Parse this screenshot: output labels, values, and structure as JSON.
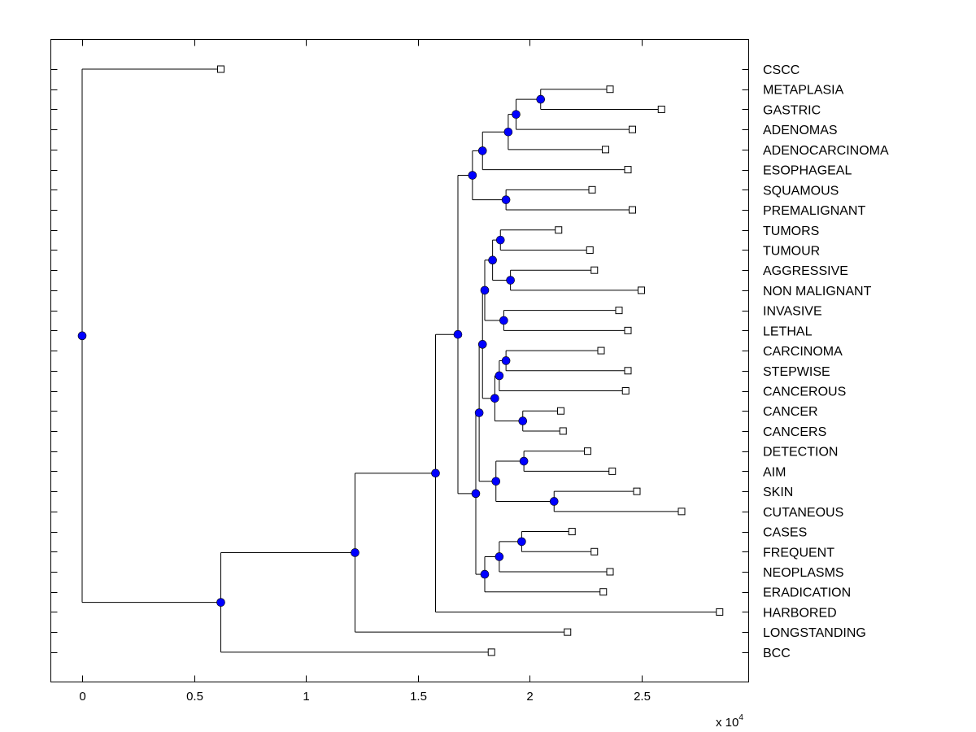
{
  "chart_data": {
    "type": "dendrogram",
    "x_axis": {
      "min": -0.14,
      "max": 2.98,
      "ticks": [
        0,
        0.5,
        1,
        1.5,
        2,
        2.5
      ],
      "tick_labels": [
        "0",
        "0.5",
        "1",
        "1.5",
        "2",
        "2.5"
      ],
      "multiplier_base": "x 10",
      "multiplier_exp": "4"
    },
    "colors": {
      "node": "#0000ff",
      "line": "#000000",
      "leaf_fill": "#ffffff"
    },
    "leaves": [
      {
        "label": "CSCC",
        "x": 0.62
      },
      {
        "label": "METAPLASIA",
        "x": 2.36
      },
      {
        "label": "GASTRIC",
        "x": 2.59
      },
      {
        "label": "ADENOMAS",
        "x": 2.46
      },
      {
        "label": "ADENOCARCINOMA",
        "x": 2.34
      },
      {
        "label": "ESOPHAGEAL",
        "x": 2.44
      },
      {
        "label": "SQUAMOUS",
        "x": 2.28
      },
      {
        "label": "PREMALIGNANT",
        "x": 2.46
      },
      {
        "label": "TUMORS",
        "x": 2.13
      },
      {
        "label": "TUMOUR",
        "x": 2.27
      },
      {
        "label": "AGGRESSIVE",
        "x": 2.29
      },
      {
        "label": "NON MALIGNANT",
        "x": 2.5
      },
      {
        "label": "INVASIVE",
        "x": 2.4
      },
      {
        "label": "LETHAL",
        "x": 2.44
      },
      {
        "label": "CARCINOMA",
        "x": 2.32
      },
      {
        "label": "STEPWISE",
        "x": 2.44
      },
      {
        "label": "CANCEROUS",
        "x": 2.43
      },
      {
        "label": "CANCER",
        "x": 2.14
      },
      {
        "label": "CANCERS",
        "x": 2.15
      },
      {
        "label": "DETECTION",
        "x": 2.26
      },
      {
        "label": "AIM",
        "x": 2.37
      },
      {
        "label": "SKIN",
        "x": 2.48
      },
      {
        "label": "CUTANEOUS",
        "x": 2.68
      },
      {
        "label": "CASES",
        "x": 2.19
      },
      {
        "label": "FREQUENT",
        "x": 2.29
      },
      {
        "label": "NEOPLASMS",
        "x": 2.36
      },
      {
        "label": "ERADICATION",
        "x": 2.33
      },
      {
        "label": "HARBORED",
        "x": 2.85
      },
      {
        "label": "LONGSTANDING",
        "x": 2.17
      },
      {
        "label": "BCC",
        "x": 1.83
      }
    ],
    "nodes": [
      {
        "id": "n1",
        "x": 2.05,
        "children": [
          1,
          2
        ]
      },
      {
        "id": "n2",
        "x": 1.94,
        "children": [
          "n1",
          3
        ]
      },
      {
        "id": "n3",
        "x": 1.905,
        "children": [
          "n2",
          4
        ]
      },
      {
        "id": "n4",
        "x": 1.79,
        "children": [
          "n3",
          5
        ]
      },
      {
        "id": "n5",
        "x": 1.895,
        "children": [
          6,
          7
        ]
      },
      {
        "id": "n6",
        "x": 1.745,
        "children": [
          "n4",
          "n5"
        ]
      },
      {
        "id": "n7",
        "x": 1.87,
        "children": [
          8,
          9
        ]
      },
      {
        "id": "n8",
        "x": 1.915,
        "children": [
          10,
          11
        ]
      },
      {
        "id": "n9",
        "x": 1.835,
        "children": [
          "n7",
          "n8"
        ]
      },
      {
        "id": "n10",
        "x": 1.885,
        "children": [
          12,
          13
        ]
      },
      {
        "id": "n11",
        "x": 1.8,
        "children": [
          "n9",
          "n10"
        ]
      },
      {
        "id": "n12",
        "x": 1.895,
        "children": [
          14,
          15
        ]
      },
      {
        "id": "n13",
        "x": 1.865,
        "children": [
          "n12",
          16
        ]
      },
      {
        "id": "n14",
        "x": 1.97,
        "children": [
          17,
          18
        ]
      },
      {
        "id": "n15",
        "x": 1.845,
        "children": [
          "n13",
          "n14"
        ]
      },
      {
        "id": "n16",
        "x": 1.79,
        "children": [
          "n11",
          "n15"
        ]
      },
      {
        "id": "n17",
        "x": 1.975,
        "children": [
          19,
          20
        ]
      },
      {
        "id": "n18",
        "x": 2.11,
        "children": [
          21,
          22
        ]
      },
      {
        "id": "n19",
        "x": 1.85,
        "children": [
          "n17",
          "n18"
        ]
      },
      {
        "id": "n20",
        "x": 1.775,
        "children": [
          "n16",
          "n19"
        ]
      },
      {
        "id": "n21",
        "x": 1.965,
        "children": [
          23,
          24
        ]
      },
      {
        "id": "n22",
        "x": 1.865,
        "children": [
          "n21",
          25
        ]
      },
      {
        "id": "n23",
        "x": 1.8,
        "children": [
          "n22",
          26
        ]
      },
      {
        "id": "n24",
        "x": 1.76,
        "children": [
          "n20",
          "n23"
        ]
      },
      {
        "id": "n25",
        "x": 1.68,
        "children": [
          "n6",
          "n24"
        ]
      },
      {
        "id": "n26",
        "x": 1.58,
        "children": [
          "n25",
          27
        ]
      },
      {
        "id": "n27",
        "x": 1.22,
        "children": [
          "n26",
          28
        ]
      },
      {
        "id": "n28",
        "x": 0.62,
        "children": [
          "n27",
          29
        ]
      },
      {
        "id": "n29",
        "x": 0.0,
        "children": [
          0,
          "n28"
        ]
      }
    ]
  }
}
